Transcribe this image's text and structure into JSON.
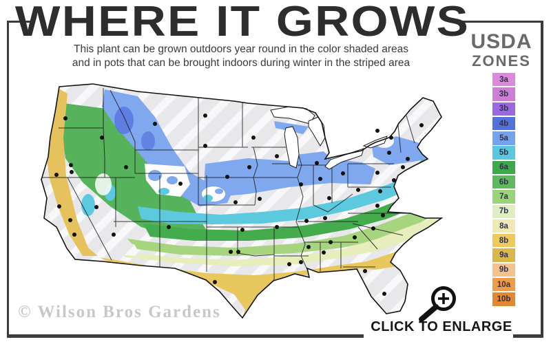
{
  "header": {
    "title": "WHERE IT GROWS",
    "subtitle_line1": "This plant can be grown outdoors year round in the color shaded areas",
    "subtitle_line2": "and in pots that can be brought indoors during winter in the striped area"
  },
  "legend": {
    "title_line1": "USDA",
    "title_line2": "ZONES",
    "zones": [
      {
        "label": "3a",
        "color": "#d98ad8"
      },
      {
        "label": "3b",
        "color": "#cc7fd4"
      },
      {
        "label": "3b",
        "color": "#9a68e0"
      },
      {
        "label": "4b",
        "color": "#5472dc"
      },
      {
        "label": "5a",
        "color": "#74a2ec"
      },
      {
        "label": "5b",
        "color": "#5ac8de"
      },
      {
        "label": "6a",
        "color": "#3ea94b"
      },
      {
        "label": "6b",
        "color": "#5fba5f"
      },
      {
        "label": "7a",
        "color": "#9dd378"
      },
      {
        "label": "7b",
        "color": "#dfeec2"
      },
      {
        "label": "8a",
        "color": "#efeab3"
      },
      {
        "label": "8b",
        "color": "#ecca5c"
      },
      {
        "label": "9a",
        "color": "#dab74a"
      },
      {
        "label": "9b",
        "color": "#f5c18d"
      },
      {
        "label": "10a",
        "color": "#f09b45"
      },
      {
        "label": "10b",
        "color": "#e18833"
      }
    ]
  },
  "map": {
    "watermark": "© Wilson Bros Gardens",
    "region": "Continental United States"
  },
  "footer": {
    "click_to_enlarge": "CLICK TO ENLARGE"
  }
}
